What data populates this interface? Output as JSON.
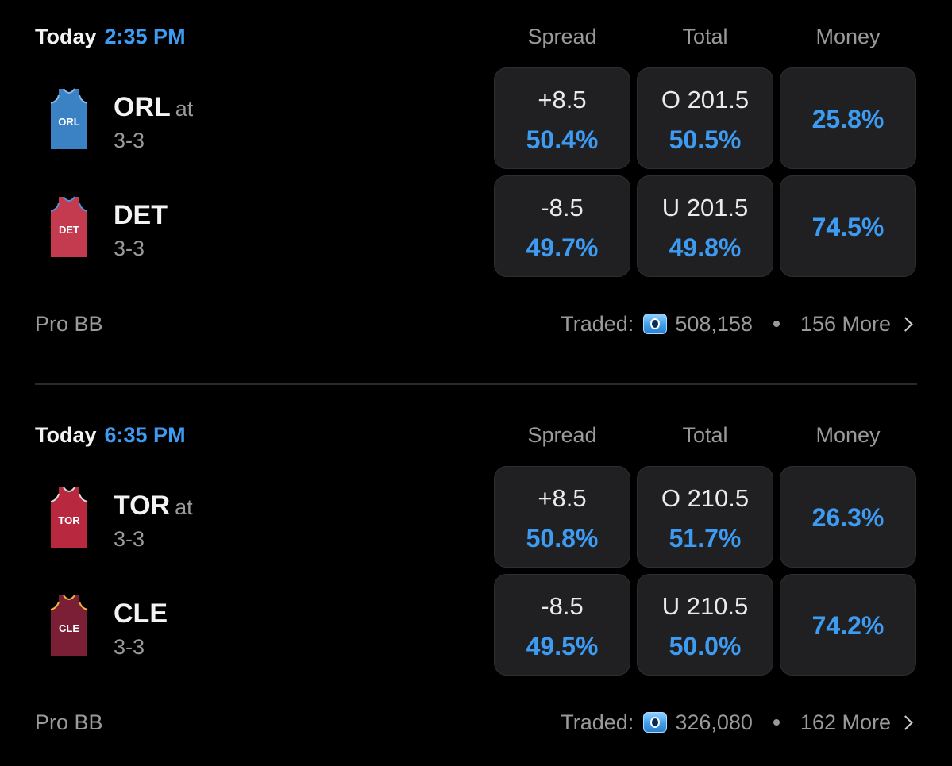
{
  "games": [
    {
      "day": "Today",
      "time": "2:35 PM",
      "columns": {
        "spread": "Spread",
        "total": "Total",
        "money": "Money"
      },
      "away": {
        "abbr": "ORL",
        "at": "at",
        "record": "3-3",
        "jersey_text": "ORL",
        "jersey_color": "#3b82c4",
        "jersey_trim": "#8ab8e6",
        "spread_line": "+8.5",
        "spread_pct": "50.4%",
        "total_line": "O 201.5",
        "total_pct": "50.5%",
        "money_pct": "25.8%"
      },
      "home": {
        "abbr": "DET",
        "record": "3-3",
        "jersey_text": "DET",
        "jersey_color": "#c43a4e",
        "jersey_trim": "#5a8fd6",
        "spread_line": "-8.5",
        "spread_pct": "49.7%",
        "total_line": "U 201.5",
        "total_pct": "49.8%",
        "money_pct": "74.5%"
      },
      "footer": {
        "league": "Pro BB",
        "traded_label": "Traded:",
        "traded_amount": "508,158",
        "more_label": "156 More"
      }
    },
    {
      "day": "Today",
      "time": "6:35 PM",
      "columns": {
        "spread": "Spread",
        "total": "Total",
        "money": "Money"
      },
      "away": {
        "abbr": "TOR",
        "at": "at",
        "record": "3-3",
        "jersey_text": "TOR",
        "jersey_color": "#b8283f",
        "jersey_trim": "#d9d9d9",
        "spread_line": "+8.5",
        "spread_pct": "50.8%",
        "total_line": "O 210.5",
        "total_pct": "51.7%",
        "money_pct": "26.3%"
      },
      "home": {
        "abbr": "CLE",
        "record": "3-3",
        "jersey_text": "CLE",
        "jersey_color": "#7a1f35",
        "jersey_trim": "#f0b43c",
        "spread_line": "-8.5",
        "spread_pct": "49.5%",
        "total_line": "U 210.5",
        "total_pct": "50.0%",
        "money_pct": "74.2%"
      },
      "footer": {
        "league": "Pro BB",
        "traded_label": "Traded:",
        "traded_amount": "326,080",
        "more_label": "162 More"
      }
    }
  ],
  "colors": {
    "accent": "#3d9bf2",
    "background": "#000000",
    "card": "#202022",
    "muted_text": "#9a9a9a"
  },
  "icons": {
    "coin": "coin-icon",
    "chevron": "chevron-right-icon",
    "jersey": "jersey-icon"
  }
}
